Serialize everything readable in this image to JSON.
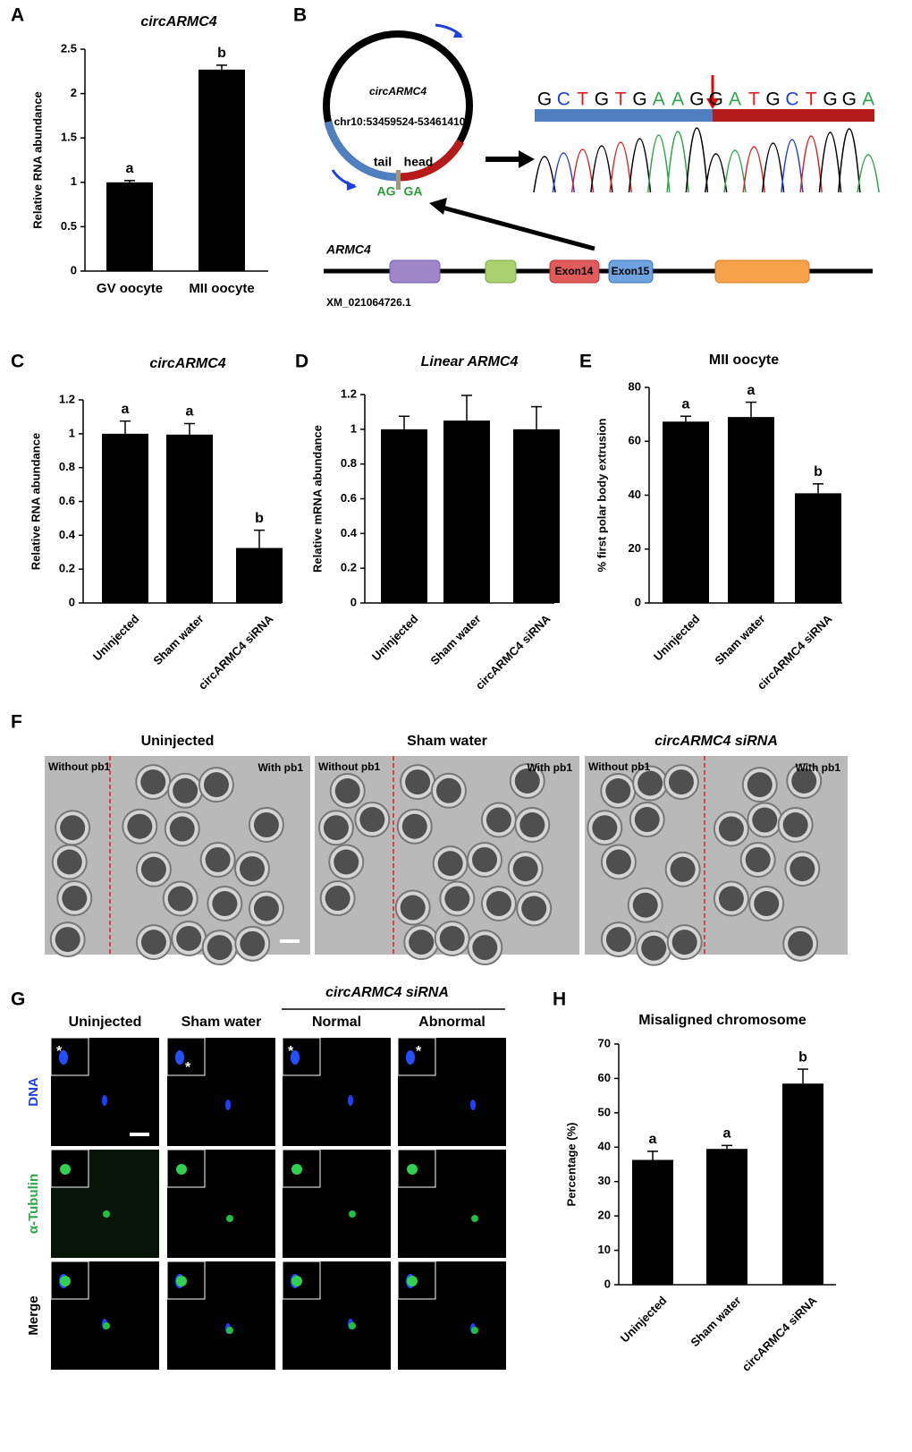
{
  "panel_labels": [
    "A",
    "B",
    "C",
    "D",
    "E",
    "F",
    "G",
    "H"
  ],
  "chart_data": [
    {
      "type": "bar",
      "title": "circARMC4",
      "ylabel": "Relative RNA abundance",
      "categories": [
        "GV oocyte",
        "MII oocyte"
      ],
      "values": [
        1,
        2.27
      ],
      "errors": [
        0.02,
        0.05
      ],
      "annotations": [
        "a",
        "b"
      ],
      "color": "#000000",
      "ylim": [
        0,
        2.5
      ],
      "yticks": [
        0,
        0.5,
        1,
        1.5,
        2,
        2.5
      ]
    },
    {
      "type": "bar",
      "title": "circARMC4",
      "ylabel": "Relative RNA abundance",
      "categories": [
        "Uninjected",
        "Sham water",
        "circARMC4 siRNA"
      ],
      "values": [
        1,
        0.995,
        0.325
      ],
      "errors": [
        0.075,
        0.065,
        0.105
      ],
      "annotations": [
        "a",
        "a",
        "b"
      ],
      "color": "#000000",
      "ylim": [
        0,
        1.2
      ],
      "yticks": [
        0,
        0.2,
        0.4,
        0.6,
        0.8,
        1,
        1.2
      ]
    },
    {
      "type": "bar",
      "title": "Linear ARMC4",
      "ylabel": "Relative mRNA abundance",
      "categories": [
        "Uninjected",
        "Sham water",
        "circARMC4 siRNA"
      ],
      "values": [
        1,
        1.05,
        1
      ],
      "errors": [
        0.075,
        0.145,
        0.13
      ],
      "color": "#000000",
      "ylim": [
        0,
        1.2
      ],
      "yticks": [
        0,
        0.2,
        0.4,
        0.6,
        0.8,
        1,
        1.2
      ]
    },
    {
      "type": "bar",
      "title": "MII oocyte",
      "ylabel": "% first polar body extrusion",
      "categories": [
        "Uninjected",
        "Sham water",
        "circARMC4 siRNA"
      ],
      "values": [
        67.3,
        69,
        40.7
      ],
      "errors": [
        2,
        5.5,
        3.5
      ],
      "annotations": [
        "a",
        "a",
        "b"
      ],
      "color": "#000000",
      "ylim": [
        0,
        80
      ],
      "yticks": [
        0,
        20,
        40,
        60,
        80
      ]
    },
    {
      "type": "bar",
      "title": "Misaligned chromosome",
      "ylabel": "Percentage (%)",
      "categories": [
        "Uninjected",
        "Sham water",
        "circARMC4 siRNA"
      ],
      "values": [
        36.3,
        39.5,
        58.5
      ],
      "errors": [
        2.5,
        1,
        4.2
      ],
      "annotations": [
        "a",
        "a",
        "b"
      ],
      "color": "#000000",
      "ylim": [
        0,
        70
      ],
      "yticks": [
        0,
        10,
        20,
        30,
        40,
        50,
        60,
        70
      ]
    }
  ],
  "panel_b": {
    "circle_title": "circARMC4",
    "coordinates": "chr10:53459524-53461410",
    "tail": "tail",
    "head": "head",
    "junction_left": "AG",
    "junction_right": "GA",
    "sequence": [
      "G",
      "C",
      "T",
      "G",
      "T",
      "G",
      "A",
      "A",
      "G",
      "G",
      "A",
      "T",
      "G",
      "C",
      "T",
      "G",
      "G",
      "A"
    ],
    "gene": "ARMC4",
    "accession": "XM_021064726.1",
    "exons": [
      "Exon14",
      "Exon15"
    ]
  },
  "panel_f": {
    "groups": [
      "Uninjected",
      "Sham water",
      "circARMC4 siRNA"
    ],
    "without": "Without  pb1",
    "with": "With pb1"
  },
  "panel_g": {
    "group": "circARMC4 siRNA",
    "columns": [
      "Uninjected",
      "Sham water",
      "Normal",
      "Abnormal"
    ],
    "rows": [
      "DNA",
      "α-Tubulin",
      "Merge"
    ],
    "marker": "*"
  }
}
